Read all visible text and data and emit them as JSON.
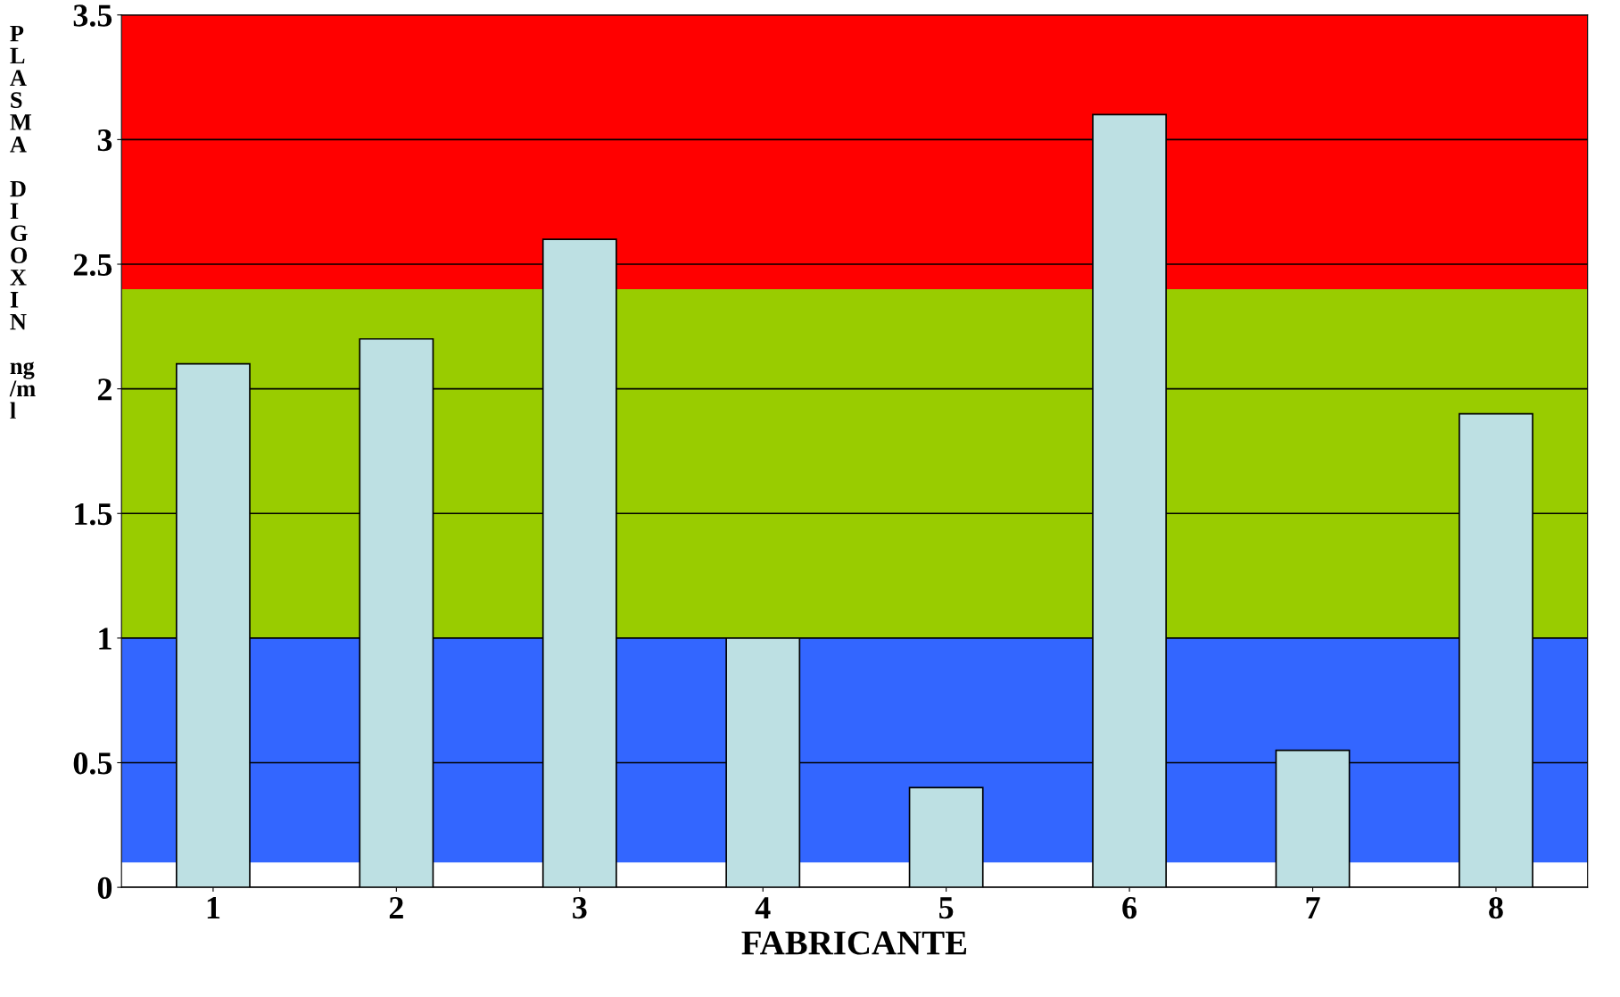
{
  "chart_data": {
    "type": "bar",
    "xlabel": "FABRICANTE",
    "ylabel": "PLASMA DIGOXIN ng/ml",
    "categories": [
      "1",
      "2",
      "3",
      "4",
      "5",
      "6",
      "7",
      "8"
    ],
    "values": [
      2.1,
      2.2,
      2.6,
      1.0,
      0.4,
      3.1,
      0.55,
      1.9
    ],
    "color": "#bde0e3",
    "ylim": [
      0,
      3.5
    ],
    "yticks": [
      0,
      0.5,
      1,
      1.5,
      2,
      2.5,
      3,
      3.5
    ],
    "grid": "y",
    "bands": [
      {
        "axis": "y",
        "from": 0.1,
        "to": 1.0,
        "color": "#3366ff"
      },
      {
        "axis": "y",
        "from": 1.0,
        "to": 2.4,
        "color": "#99cc00"
      },
      {
        "axis": "y",
        "from": 2.4,
        "to": 3.5,
        "color": "#ff0000"
      }
    ]
  }
}
